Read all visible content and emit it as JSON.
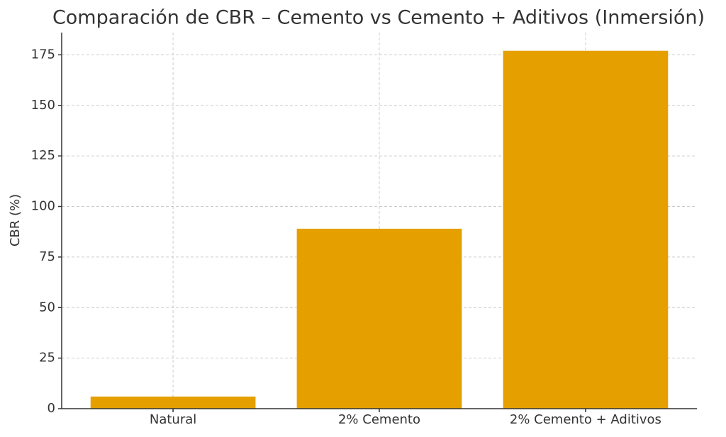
{
  "chart_data": {
    "type": "bar",
    "title": "Comparación de CBR – Cemento vs Cemento + Aditivos (Inmersión)",
    "y_label": "CBR (%)",
    "categories": [
      "Natural",
      "2% Cemento",
      "2% Cemento + Aditivos"
    ],
    "values": [
      6,
      89,
      177
    ],
    "color": "#e5a000",
    "ylim": [
      0,
      186
    ],
    "yticks": [
      0,
      25,
      50,
      75,
      100,
      125,
      150,
      175
    ],
    "grid": true
  }
}
